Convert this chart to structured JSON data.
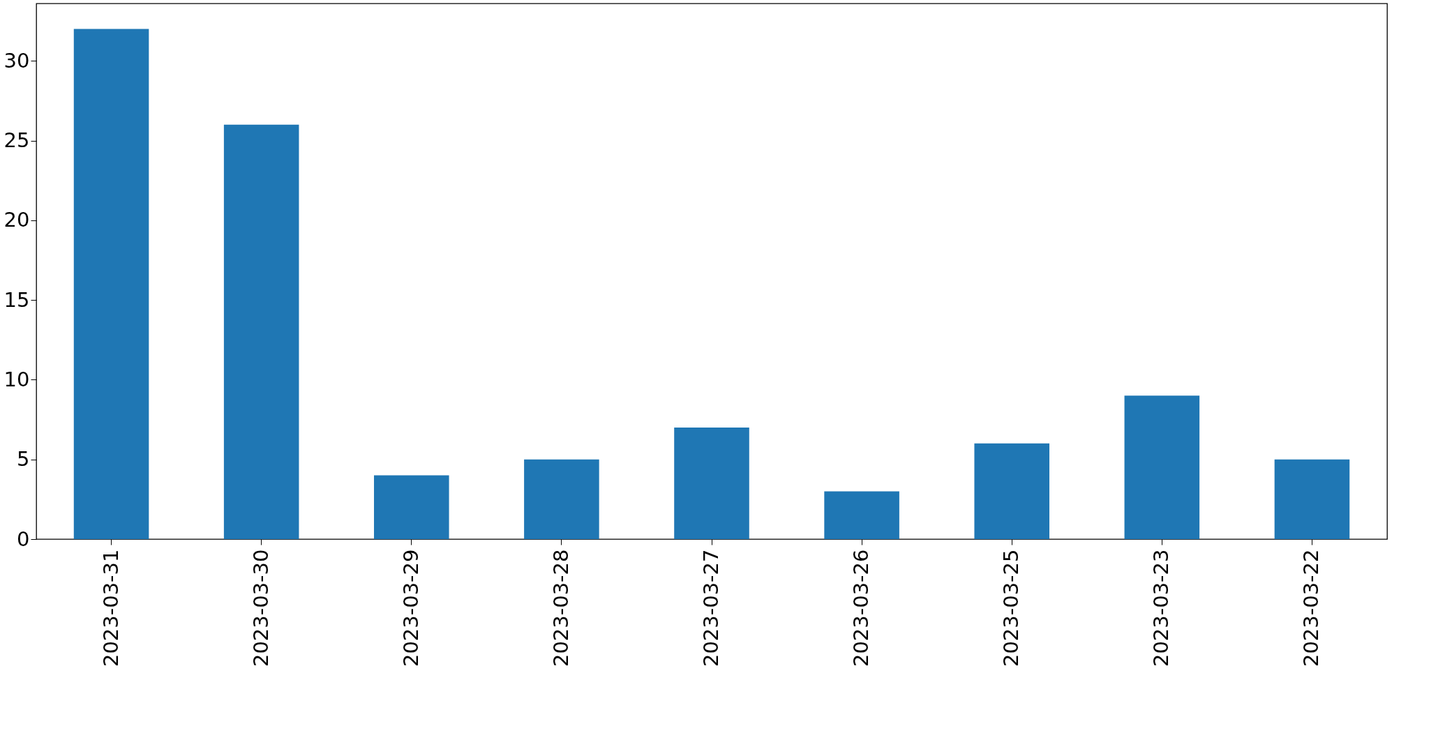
{
  "chart_data": {
    "type": "bar",
    "categories": [
      "2023-03-31",
      "2023-03-30",
      "2023-03-29",
      "2023-03-28",
      "2023-03-27",
      "2023-03-26",
      "2023-03-25",
      "2023-03-23",
      "2023-03-22"
    ],
    "values": [
      32,
      26,
      4,
      5,
      7,
      3,
      6,
      9,
      5
    ],
    "color": "#1f77b4",
    "ylim": [
      0,
      33.6
    ],
    "yticks": [
      0,
      5,
      10,
      15,
      20,
      25,
      30
    ],
    "grid": false
  }
}
